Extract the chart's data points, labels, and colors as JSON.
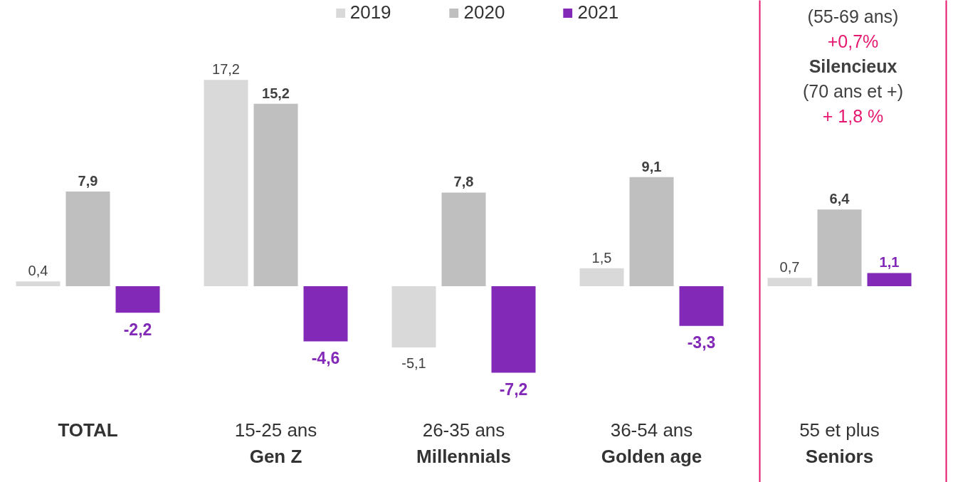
{
  "chart_data": {
    "type": "bar",
    "categories": [
      "TOTAL",
      "15-25 ans\nGen Z",
      "26-35 ans\nMillennials",
      "36-54 ans\nGolden age",
      "55 et plus\nSeniors"
    ],
    "series": [
      {
        "name": "2019",
        "color": "#d9d9d9",
        "values": [
          0.4,
          17.2,
          -5.1,
          1.5,
          0.7
        ],
        "value_labels": [
          "0,4",
          "17,2",
          "-5,1",
          "1,5",
          "0,7"
        ]
      },
      {
        "name": "2020",
        "color": "#bfbfbf",
        "values": [
          7.9,
          15.2,
          7.8,
          9.1,
          6.4
        ],
        "value_labels": [
          "7,9",
          "15,2",
          "7,8",
          "9,1",
          "6,4"
        ]
      },
      {
        "name": "2021",
        "color": "#8229b8",
        "values": [
          -2.2,
          -4.6,
          -7.2,
          -3.3,
          1.1
        ],
        "value_labels": [
          "-2,2",
          "-4,6",
          "-7,2",
          "-3,3",
          "1,1"
        ]
      }
    ],
    "annotations": [
      "(55-69 ans)",
      "+0,7%",
      "Silencieux",
      "(70 ans et +)",
      "+ 1,8 %"
    ],
    "legend": "top",
    "grid": false
  }
}
